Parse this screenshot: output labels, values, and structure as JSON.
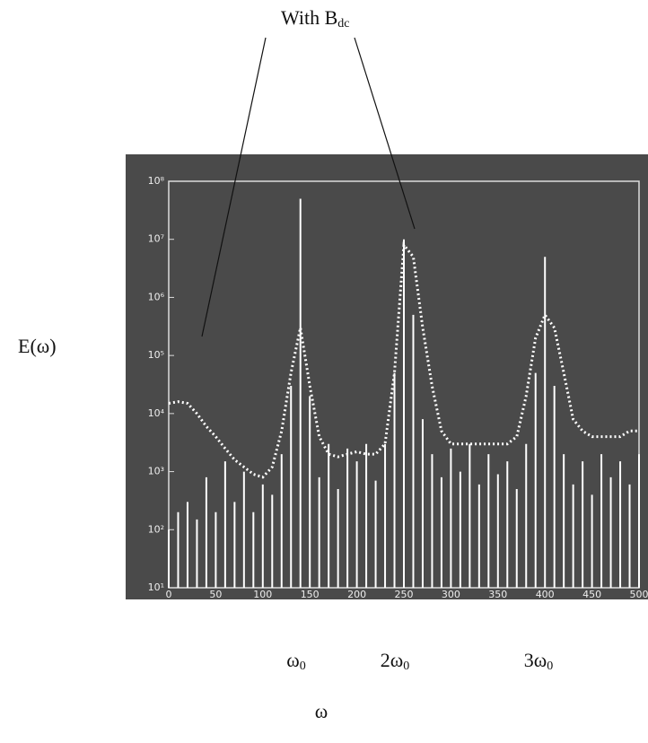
{
  "chart_data": {
    "type": "line",
    "ylog": true,
    "annotation": {
      "main": "With B",
      "sub": "dc"
    },
    "y_label": "E(ω)",
    "x_label": "ω",
    "harmonics": [
      {
        "main": "ω",
        "sub": "0"
      },
      {
        "main": "2ω",
        "sub": "0"
      },
      {
        "main": "3ω",
        "sub": "0"
      }
    ],
    "xlim": [
      0,
      500
    ],
    "xticks": [
      0,
      50,
      100,
      150,
      200,
      250,
      300,
      350,
      400,
      450,
      500
    ],
    "ylim": [
      10,
      100000000
    ],
    "yticks": [
      {
        "value": 10,
        "label": "10¹"
      },
      {
        "value": 100,
        "label": "10²"
      },
      {
        "value": 1000,
        "label": "10³"
      },
      {
        "value": 10000,
        "label": "10⁴"
      },
      {
        "value": 100000,
        "label": "10⁵"
      },
      {
        "value": 1000000,
        "label": "10⁶"
      },
      {
        "value": 10000000,
        "label": "10⁷"
      },
      {
        "value": 100000000,
        "label": "10⁸"
      }
    ],
    "x": [
      0,
      10,
      20,
      30,
      40,
      50,
      60,
      70,
      80,
      90,
      100,
      110,
      120,
      130,
      140,
      150,
      160,
      170,
      180,
      190,
      200,
      210,
      220,
      230,
      240,
      250,
      260,
      270,
      280,
      290,
      300,
      310,
      320,
      330,
      340,
      350,
      360,
      370,
      380,
      390,
      400,
      410,
      420,
      430,
      440,
      450,
      460,
      470,
      480,
      490,
      500
    ],
    "series": [
      {
        "color": "#ffffff",
        "style": "stem",
        "values": [
          100,
          200,
          300,
          150,
          800,
          200,
          1500,
          300,
          1000,
          200,
          600,
          400,
          2000,
          30000,
          50000000,
          20000,
          800,
          3000,
          500,
          2500,
          1500,
          3000,
          700,
          3000,
          50000,
          10000000,
          500000,
          8000,
          2000,
          800,
          2500,
          1000,
          3000,
          600,
          2000,
          900,
          1500,
          500,
          3000,
          50000,
          5000000,
          30000,
          2000,
          600,
          1500,
          400,
          2000,
          800,
          1500,
          600,
          2000
        ]
      },
      {
        "color": "#ffffff",
        "style": "dotted",
        "values": [
          15000,
          16000,
          15000,
          10000,
          6000,
          4000,
          2500,
          1600,
          1200,
          900,
          800,
          1200,
          5000,
          50000,
          300000,
          30000,
          4000,
          2000,
          1800,
          2000,
          2200,
          2000,
          2000,
          3000,
          50000,
          8000000,
          5000000,
          300000,
          30000,
          5000,
          3000,
          3000,
          3000,
          3000,
          3000,
          3000,
          3000,
          4000,
          20000,
          200000,
          500000,
          300000,
          50000,
          8000,
          5000,
          4000,
          4000,
          4000,
          4000,
          5000,
          5000
        ]
      }
    ]
  }
}
